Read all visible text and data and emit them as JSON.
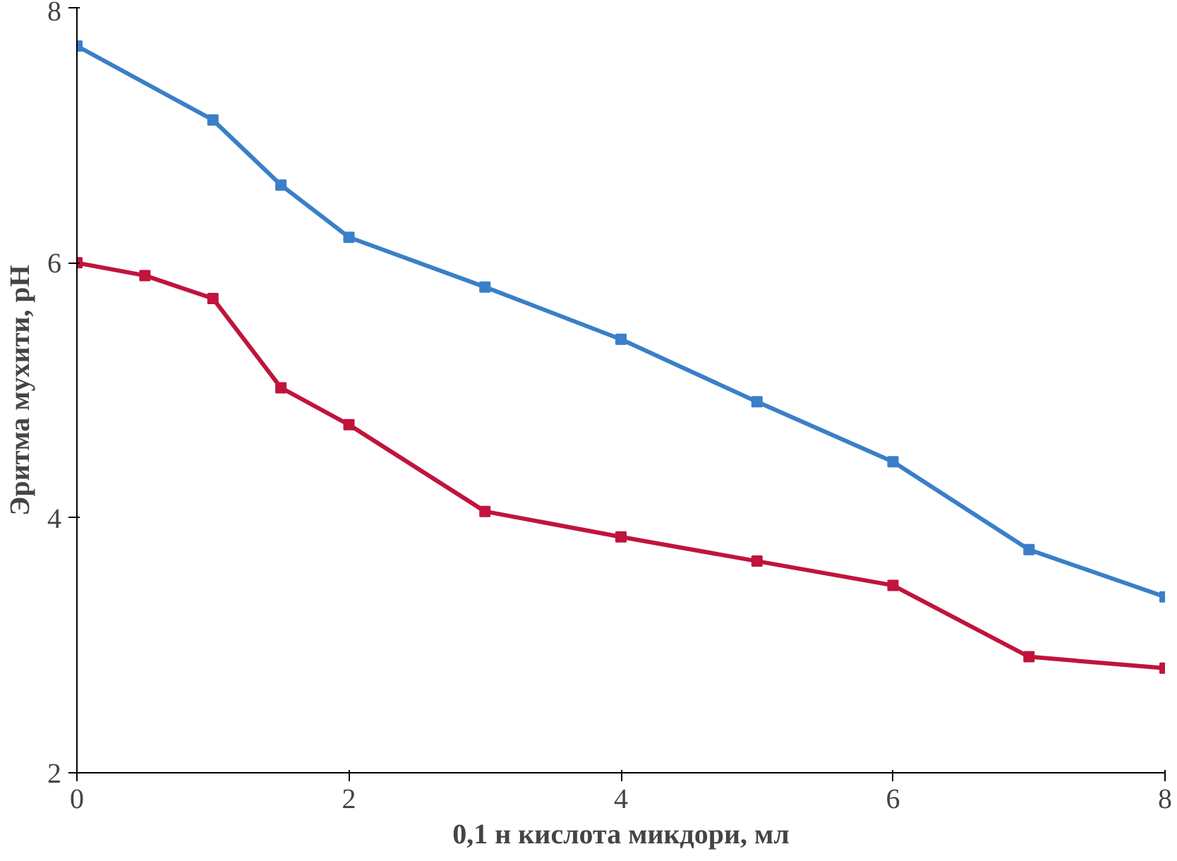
{
  "chart_data": {
    "type": "line",
    "xlabel": "0,1 н кислота микдори, мл",
    "ylabel": "Эритма мухити, pH",
    "xlim": [
      0,
      8
    ],
    "ylim": [
      2,
      8
    ],
    "xticks": [
      0,
      2,
      4,
      6,
      8
    ],
    "yticks": [
      2,
      4,
      6,
      8
    ],
    "grid": false,
    "marker": "square",
    "line_style": "solid",
    "series": [
      {
        "color": "#3a7fc8",
        "x": [
          0,
          1,
          1.5,
          2,
          3,
          4,
          5,
          6,
          7,
          8
        ],
        "values": [
          7.7,
          7.12,
          6.61,
          6.2,
          5.81,
          5.4,
          4.91,
          4.44,
          3.75,
          3.38
        ]
      },
      {
        "color": "#c0143c",
        "x": [
          0,
          0.5,
          1,
          1.5,
          2,
          3,
          4,
          5,
          6,
          7,
          8
        ],
        "values": [
          6.0,
          5.9,
          5.72,
          5.02,
          4.73,
          4.05,
          3.85,
          3.66,
          3.47,
          2.91,
          2.82
        ]
      }
    ]
  }
}
